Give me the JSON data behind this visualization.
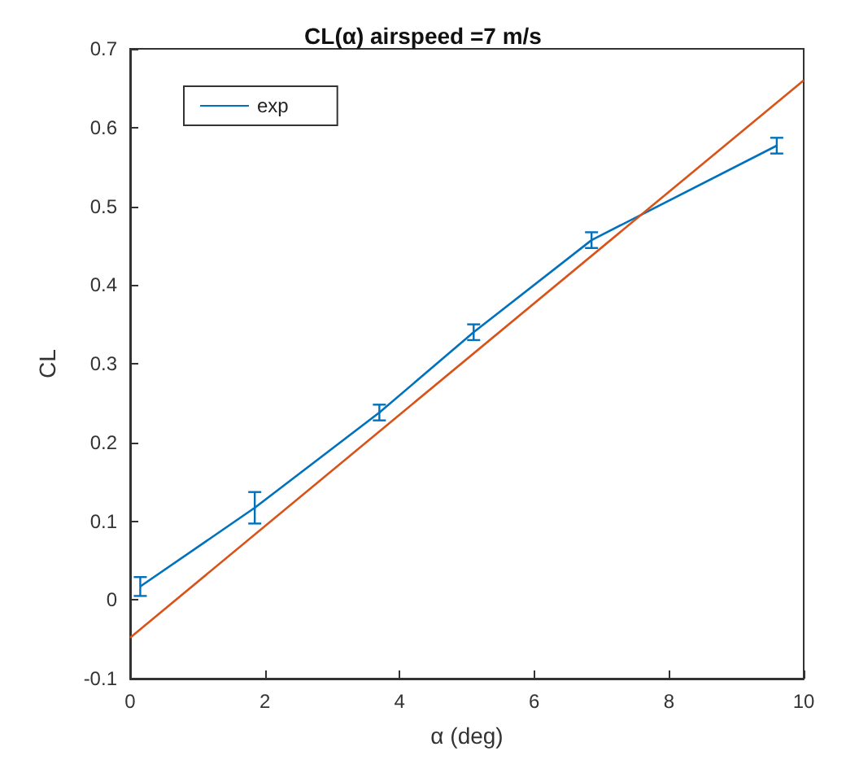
{
  "chart_data": {
    "type": "line",
    "title": "CL(α) airspeed =7 m/s",
    "xlabel": "α (deg)",
    "ylabel": "CL",
    "xlim": [
      0,
      10
    ],
    "xticks": [
      0,
      2,
      4,
      6,
      8,
      10
    ],
    "ylim": [
      -0.1,
      0.7
    ],
    "yticks": [
      -0.1,
      0,
      0.1,
      0.2,
      0.3,
      0.4,
      0.5,
      0.6,
      0.7
    ],
    "grid": false,
    "legend": "top left",
    "marker": "none",
    "series": [
      {
        "name": "exp",
        "color": "#0072bd",
        "x": [
          0.15,
          1.85,
          3.7,
          5.1,
          6.85,
          9.6
        ],
        "values": [
          0.017,
          0.117,
          0.238,
          0.34,
          0.457,
          0.577
        ],
        "errors": [
          0.012,
          0.02,
          0.01,
          0.01,
          0.01,
          0.01
        ]
      },
      {
        "color": "#d95319",
        "x": [
          0,
          10
        ],
        "values": [
          -0.048,
          0.66
        ]
      }
    ]
  }
}
